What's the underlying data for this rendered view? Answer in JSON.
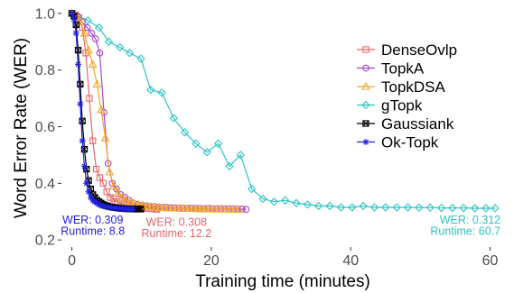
{
  "chart_data": {
    "type": "line",
    "title": "",
    "xlabel": "Training time (minutes)",
    "ylabel": "Word Error Rate (WER)",
    "xlim": [
      -1.5,
      62
    ],
    "ylim": [
      0.175,
      1.025
    ],
    "xticks": [
      0,
      20,
      40,
      60
    ],
    "yticks": [
      0.2,
      0.4,
      0.6,
      0.8,
      1.0
    ],
    "xtick_labels": [
      "0",
      "20",
      "40",
      "60"
    ],
    "ytick_labels": [
      "0.2",
      "0.4",
      "0.6",
      "0.8",
      "1.0"
    ],
    "grid": false,
    "legend_position": "right",
    "series": [
      {
        "name": "DenseOvlp",
        "color": "#e8656b",
        "marker": "square-open",
        "x": [
          0.0,
          0.5,
          1.0,
          1.5,
          2.0,
          2.5,
          3.0,
          3.5,
          4.0,
          4.5,
          5.0,
          5.5,
          6.0,
          6.5,
          7.0,
          7.5,
          8.0,
          8.5,
          9.0,
          9.5,
          10.0,
          10.5,
          11.0,
          11.5,
          12.0,
          12.2
        ],
        "y": [
          1.0,
          0.995,
          0.985,
          0.95,
          0.86,
          0.7,
          0.55,
          0.45,
          0.42,
          0.4,
          0.37,
          0.35,
          0.345,
          0.335,
          0.33,
          0.325,
          0.32,
          0.318,
          0.317,
          0.315,
          0.314,
          0.312,
          0.311,
          0.31,
          0.309,
          0.308
        ]
      },
      {
        "name": "TopkA",
        "color": "#a845d3",
        "marker": "circle-open",
        "x": [
          0.0,
          0.8,
          1.5,
          2.2,
          2.8,
          3.4,
          4.0,
          4.6,
          5.2,
          5.8,
          6.4,
          7.0,
          7.6,
          8.2,
          8.8,
          9.4,
          10.0,
          10.6,
          11.2,
          11.8,
          12.4,
          13.0,
          13.6,
          14.2,
          14.8,
          15.4,
          16.0,
          16.6,
          17.2,
          17.8,
          18.4,
          19.0,
          19.6,
          20.2,
          20.8,
          21.4,
          22.0,
          22.6,
          23.2,
          23.8,
          24.4,
          25.0
        ],
        "y": [
          1.0,
          0.99,
          0.97,
          0.95,
          0.93,
          0.91,
          0.86,
          0.65,
          0.47,
          0.4,
          0.38,
          0.36,
          0.35,
          0.34,
          0.33,
          0.325,
          0.322,
          0.32,
          0.318,
          0.318,
          0.315,
          0.315,
          0.315,
          0.313,
          0.313,
          0.312,
          0.312,
          0.311,
          0.312,
          0.311,
          0.311,
          0.31,
          0.311,
          0.31,
          0.31,
          0.31,
          0.309,
          0.31,
          0.309,
          0.309,
          0.309,
          0.308
        ]
      },
      {
        "name": "TopkDSA",
        "color": "#f5a623",
        "marker": "triangle-open",
        "x": [
          0.0,
          0.6,
          1.2,
          1.8,
          2.4,
          3.0,
          3.6,
          4.2,
          4.8,
          5.4,
          6.0,
          6.6,
          7.2,
          7.8,
          8.4,
          9.0,
          9.6,
          10.2,
          10.8,
          11.4,
          12.0,
          12.6,
          13.2,
          13.8,
          14.4,
          15.0,
          15.6,
          16.2,
          16.8,
          17.4,
          18.0,
          18.6,
          19.2,
          19.8,
          20.4,
          21.0,
          21.6,
          22.2,
          22.8,
          23.4,
          24.0
        ],
        "y": [
          1.0,
          0.99,
          0.97,
          0.93,
          0.87,
          0.82,
          0.75,
          0.66,
          0.56,
          0.44,
          0.39,
          0.365,
          0.35,
          0.34,
          0.335,
          0.33,
          0.325,
          0.322,
          0.32,
          0.318,
          0.316,
          0.315,
          0.314,
          0.313,
          0.313,
          0.312,
          0.312,
          0.311,
          0.311,
          0.311,
          0.31,
          0.31,
          0.31,
          0.31,
          0.309,
          0.309,
          0.309,
          0.309,
          0.309,
          0.308,
          0.308
        ]
      },
      {
        "name": "gTopk",
        "color": "#2ec4c4",
        "marker": "diamond-open",
        "x": [
          0.0,
          2.3,
          3.9,
          5.3,
          6.9,
          8.3,
          9.9,
          11.3,
          12.9,
          14.6,
          16.2,
          17.8,
          19.4,
          21.0,
          22.6,
          24.2,
          25.8,
          27.4,
          29.0,
          30.6,
          32.2,
          33.8,
          35.4,
          37.0,
          38.6,
          40.2,
          41.8,
          43.4,
          45.0,
          46.6,
          48.2,
          49.8,
          51.4,
          53.0,
          54.6,
          56.2,
          57.8,
          59.4,
          60.7
        ],
        "y": [
          1.0,
          0.975,
          0.95,
          0.9,
          0.88,
          0.86,
          0.84,
          0.73,
          0.72,
          0.63,
          0.58,
          0.54,
          0.51,
          0.54,
          0.46,
          0.5,
          0.38,
          0.345,
          0.335,
          0.34,
          0.33,
          0.325,
          0.32,
          0.32,
          0.315,
          0.315,
          0.32,
          0.315,
          0.315,
          0.315,
          0.315,
          0.314,
          0.314,
          0.313,
          0.313,
          0.313,
          0.312,
          0.312,
          0.312
        ]
      },
      {
        "name": "Gaussiank",
        "color": "#000000",
        "marker": "square-x",
        "x": [
          0.0,
          0.3,
          0.6,
          0.9,
          1.2,
          1.5,
          1.8,
          2.1,
          2.4,
          2.7,
          3.0,
          3.3,
          3.6,
          3.9,
          4.2,
          4.5,
          4.8,
          5.1,
          5.4,
          5.7,
          6.0,
          6.3,
          6.6,
          6.9,
          7.2,
          7.5,
          7.8,
          8.1,
          8.4,
          8.7,
          9.0,
          9.3,
          9.6,
          9.9
        ],
        "y": [
          1.0,
          0.99,
          0.96,
          0.87,
          0.75,
          0.62,
          0.52,
          0.45,
          0.41,
          0.38,
          0.36,
          0.35,
          0.34,
          0.335,
          0.33,
          0.325,
          0.322,
          0.32,
          0.318,
          0.316,
          0.315,
          0.314,
          0.313,
          0.312,
          0.311,
          0.311,
          0.31,
          0.31,
          0.31,
          0.309,
          0.309,
          0.309,
          0.309,
          0.309
        ]
      },
      {
        "name": "Ok-Topk",
        "color": "#1f1fe0",
        "marker": "star",
        "x": [
          0.0,
          0.3,
          0.6,
          0.9,
          1.2,
          1.5,
          1.8,
          2.1,
          2.4,
          2.7,
          3.0,
          3.3,
          3.6,
          3.9,
          4.2,
          4.5,
          4.8,
          5.1,
          5.4,
          5.7,
          6.0,
          6.3,
          6.6,
          6.9,
          7.2,
          7.5,
          7.8,
          8.1,
          8.4,
          8.8
        ],
        "y": [
          1.0,
          0.98,
          0.93,
          0.82,
          0.68,
          0.55,
          0.46,
          0.4,
          0.37,
          0.35,
          0.34,
          0.335,
          0.33,
          0.325,
          0.322,
          0.32,
          0.318,
          0.316,
          0.315,
          0.314,
          0.313,
          0.312,
          0.311,
          0.311,
          0.31,
          0.31,
          0.31,
          0.309,
          0.309,
          0.309
        ]
      }
    ],
    "annotations": [
      {
        "lines": [
          "WER: 0.309",
          "Runtime: 8.8"
        ],
        "color": "#1f1fe0",
        "x": 3.0,
        "y": 0.257,
        "anchor": "middle"
      },
      {
        "lines": [
          "WER: 0.308",
          "Runtime: 12.2"
        ],
        "color": "#e8656b",
        "x": 15.0,
        "y": 0.25,
        "anchor": "middle"
      },
      {
        "lines": [
          "WER: 0.312",
          "Runtime: 60.7"
        ],
        "color": "#2ec4c4",
        "x": 61.5,
        "y": 0.257,
        "anchor": "end"
      }
    ]
  }
}
